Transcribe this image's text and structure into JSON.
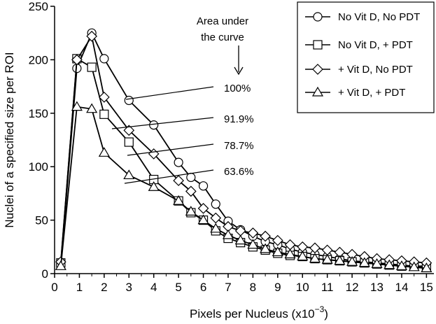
{
  "chart_data": {
    "type": "line",
    "xlabel": "Pixels per Nucleus  (x10",
    "xlabel_exp": "−3",
    "xlabel_close": ")",
    "ylabel": "Nuclei of a specified size per ROI",
    "xlim": [
      0,
      15.3
    ],
    "ylim": [
      0,
      250
    ],
    "x_ticks": [
      "0",
      "1",
      "2",
      "3",
      "4",
      "5",
      "6",
      "7",
      "8",
      "9",
      "10",
      "11",
      "12",
      "13",
      "14",
      "15"
    ],
    "y_ticks": [
      "0",
      "50",
      "100",
      "150",
      "200",
      "250"
    ],
    "grid": false,
    "legend_position": "top-right",
    "series": [
      {
        "name": "No Vit D, No PDT",
        "marker": "circle",
        "x": [
          0.25,
          0.9,
          1.5,
          2.0,
          3.0,
          4.0,
          5.0,
          5.5,
          6.0,
          6.5,
          7.0,
          7.5,
          8.0,
          8.5,
          9.0,
          9.5,
          10.0,
          10.5,
          11.0,
          11.5,
          12.0,
          12.5,
          13.0,
          13.5,
          14.0,
          14.5,
          15.0
        ],
        "y": [
          8,
          192,
          225,
          201,
          162,
          139,
          104,
          90,
          82,
          65,
          49,
          41,
          35,
          30,
          27,
          23,
          20,
          18,
          16,
          14,
          12,
          11,
          10,
          9,
          8,
          7,
          7
        ]
      },
      {
        "name": "No Vit D, + PDT",
        "marker": "square",
        "x": [
          0.25,
          0.9,
          1.5,
          2.0,
          3.0,
          4.0,
          5.0,
          5.5,
          6.0,
          6.5,
          7.0,
          7.5,
          8.0,
          8.5,
          9.0,
          9.5,
          10.0,
          10.5,
          11.0,
          11.5,
          12.0,
          12.5,
          13.0,
          13.5,
          14.0,
          14.5,
          15.0
        ],
        "y": [
          10,
          201,
          193,
          149,
          123,
          88,
          68,
          57,
          50,
          40,
          33,
          29,
          25,
          22,
          19,
          17,
          16,
          14,
          13,
          12,
          11,
          10,
          9,
          8,
          7,
          7,
          6
        ]
      },
      {
        "name": "+ Vit D, No PDT",
        "marker": "diamond",
        "x": [
          0.25,
          0.9,
          1.5,
          2.0,
          3.0,
          4.0,
          5.0,
          5.5,
          6.0,
          6.5,
          7.0,
          7.5,
          8.0,
          8.5,
          9.0,
          9.5,
          10.0,
          10.5,
          11.0,
          11.5,
          12.0,
          12.5,
          13.0,
          13.5,
          14.0,
          14.5,
          15.0
        ],
        "y": [
          11,
          200,
          222,
          165,
          134,
          112,
          87,
          77,
          61,
          52,
          44,
          40,
          38,
          35,
          31,
          27,
          25,
          24,
          22,
          20,
          18,
          16,
          14,
          13,
          12,
          11,
          10
        ]
      },
      {
        "name": "+ Vit D, + PDT",
        "marker": "triangle",
        "x": [
          0.25,
          0.9,
          1.5,
          2.0,
          3.0,
          4.0,
          5.0,
          5.5,
          6.0,
          6.5,
          7.0,
          7.5,
          8.0,
          8.5,
          9.0,
          9.5,
          10.0,
          10.5,
          11.0,
          11.5,
          12.0,
          12.5,
          13.0,
          13.5,
          14.0,
          14.5,
          15.0
        ],
        "y": [
          7,
          156,
          154,
          113,
          92,
          81,
          68,
          58,
          50,
          42,
          36,
          31,
          27,
          23,
          20,
          18,
          16,
          14,
          13,
          12,
          11,
          10,
          9,
          8,
          7,
          6,
          5
        ]
      }
    ],
    "annotation_title": [
      "Area under",
      "the curve"
    ],
    "annotations": [
      "100%",
      "91.9%",
      "78.7%",
      "63.6%"
    ]
  }
}
